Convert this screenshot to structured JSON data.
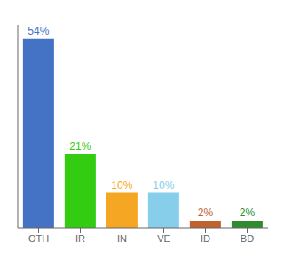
{
  "chart_data": {
    "type": "bar",
    "categories": [
      "OTH",
      "IR",
      "IN",
      "VE",
      "ID",
      "BD"
    ],
    "values": [
      54,
      21,
      10,
      10,
      2,
      2
    ],
    "value_labels": [
      "54%",
      "21%",
      "10%",
      "10%",
      "2%",
      "2%"
    ],
    "data_labels": true,
    "colors": [
      "#4472C4",
      "#33CC11",
      "#F5A623",
      "#87CEEB",
      "#C0622D",
      "#2E8B2E"
    ],
    "ylim": [
      0,
      58
    ],
    "tick_labels": "x",
    "grid": false
  }
}
